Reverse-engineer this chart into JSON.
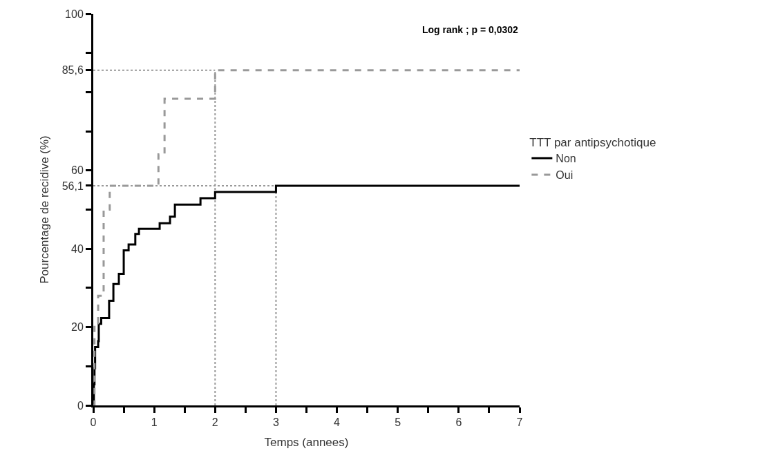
{
  "chart_data": {
    "type": "step",
    "xlabel": "Temps (annees)",
    "ylabel": "Pourcentage de recidive (%)",
    "legend_title": "TTT par antipsychotique",
    "annotations": [
      "Log rank ; p = 0,0302"
    ],
    "series": [
      {
        "name": "Non",
        "color": "#000000",
        "line_style": "solid",
        "x": [
          0,
          0.01,
          0.02,
          0.03,
          0.08,
          0.09,
          0.13,
          0.26,
          0.33,
          0.42,
          0.5,
          0.58,
          0.69,
          0.75,
          1.09,
          1.26,
          1.34,
          1.76,
          2.0,
          3.0,
          7
        ],
        "values": [
          0,
          5.4,
          9.5,
          14.9,
          16.4,
          20.8,
          22.3,
          26.7,
          31,
          33.6,
          39.6,
          41.1,
          43.8,
          45.1,
          46.5,
          48.2,
          51.3,
          52.9,
          54.5,
          56.1,
          56.1
        ]
      },
      {
        "name": "Oui",
        "color": "#999999",
        "line_style": "dashed",
        "x": [
          0,
          0.02,
          0.08,
          0.17,
          0.27,
          1.07,
          1.17,
          2.0,
          7
        ],
        "values": [
          0,
          21,
          28,
          50,
          56.1,
          64.1,
          78.3,
          85.6,
          85.6
        ]
      }
    ],
    "ref_lines": [
      {
        "axis": "y",
        "value": 85.6,
        "color": "#999999",
        "line_style": "dotted"
      },
      {
        "axis": "y",
        "value": 56.1,
        "color": "#999999",
        "line_style": "dotted"
      },
      {
        "axis": "x",
        "value": 2,
        "color": "#999999",
        "line_style": "dotted"
      },
      {
        "axis": "x",
        "value": 3,
        "color": "#999999",
        "line_style": "dotted"
      }
    ],
    "xlim": [
      0,
      7
    ],
    "ylim": [
      0,
      100
    ],
    "xticks": [
      0,
      {
        "value": 0.5,
        "label": null
      },
      1,
      {
        "value": 1.5,
        "label": null
      },
      2,
      {
        "value": 2.5,
        "label": null
      },
      3,
      {
        "value": 3.5,
        "label": null
      },
      4,
      {
        "value": 4.5,
        "label": null
      },
      5,
      {
        "value": 5.5,
        "label": null
      },
      6,
      {
        "value": 6.5,
        "label": null
      },
      7
    ],
    "yticks": [
      0,
      {
        "value": 10,
        "label": null
      },
      20,
      {
        "value": 30,
        "label": null
      },
      40,
      {
        "value": 50,
        "label": null
      },
      {
        "value": 56.1,
        "label": "56,1"
      },
      60,
      {
        "value": 70,
        "label": null
      },
      {
        "value": 80,
        "label": null
      },
      {
        "value": 85.6,
        "label": "85,6"
      },
      {
        "value": 90,
        "label": null
      },
      100
    ],
    "grid": false,
    "legend": "right",
    "marker": "none"
  }
}
